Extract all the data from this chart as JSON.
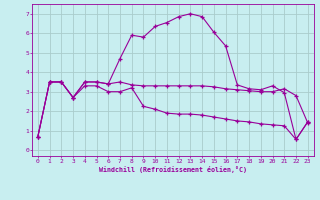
{
  "xlabel": "Windchill (Refroidissement éolien,°C)",
  "x_ticks": [
    0,
    1,
    2,
    3,
    4,
    5,
    6,
    7,
    8,
    9,
    10,
    11,
    12,
    13,
    14,
    15,
    16,
    17,
    18,
    19,
    20,
    21,
    22,
    23
  ],
  "y_ticks": [
    0,
    1,
    2,
    3,
    4,
    5,
    6,
    7
  ],
  "ylim": [
    -0.3,
    7.5
  ],
  "xlim": [
    -0.5,
    23.5
  ],
  "background_color": "#c8eef0",
  "grid_color": "#aacccc",
  "line_color": "#990099",
  "series1_x": [
    0,
    1,
    2,
    3,
    4,
    5,
    6,
    7,
    8,
    9,
    10,
    11,
    12,
    13,
    14,
    15,
    16,
    17,
    18,
    19,
    20,
    21,
    22,
    23
  ],
  "series1_y": [
    0.7,
    3.5,
    3.5,
    2.7,
    3.5,
    3.5,
    3.4,
    3.5,
    3.35,
    3.3,
    3.3,
    3.3,
    3.3,
    3.3,
    3.3,
    3.25,
    3.15,
    3.1,
    3.05,
    3.0,
    3.0,
    3.15,
    2.8,
    1.4
  ],
  "series2_x": [
    0,
    1,
    2,
    3,
    4,
    5,
    6,
    7,
    8,
    9,
    10,
    11,
    12,
    13,
    14,
    15,
    16,
    17,
    18,
    19,
    20,
    21,
    22,
    23
  ],
  "series2_y": [
    0.7,
    3.5,
    3.5,
    2.7,
    3.5,
    3.5,
    3.4,
    4.7,
    5.9,
    5.8,
    6.35,
    6.55,
    6.85,
    7.0,
    6.85,
    6.05,
    5.35,
    3.35,
    3.15,
    3.1,
    3.3,
    2.95,
    0.55,
    1.45
  ],
  "series3_x": [
    0,
    1,
    2,
    3,
    4,
    5,
    6,
    7,
    8,
    9,
    10,
    11,
    12,
    13,
    14,
    15,
    16,
    17,
    18,
    19,
    20,
    21,
    22,
    23
  ],
  "series3_y": [
    0.7,
    3.5,
    3.5,
    2.7,
    3.3,
    3.3,
    3.0,
    3.0,
    3.2,
    2.25,
    2.1,
    1.9,
    1.85,
    1.85,
    1.8,
    1.7,
    1.6,
    1.5,
    1.45,
    1.35,
    1.3,
    1.25,
    0.55,
    1.45
  ]
}
